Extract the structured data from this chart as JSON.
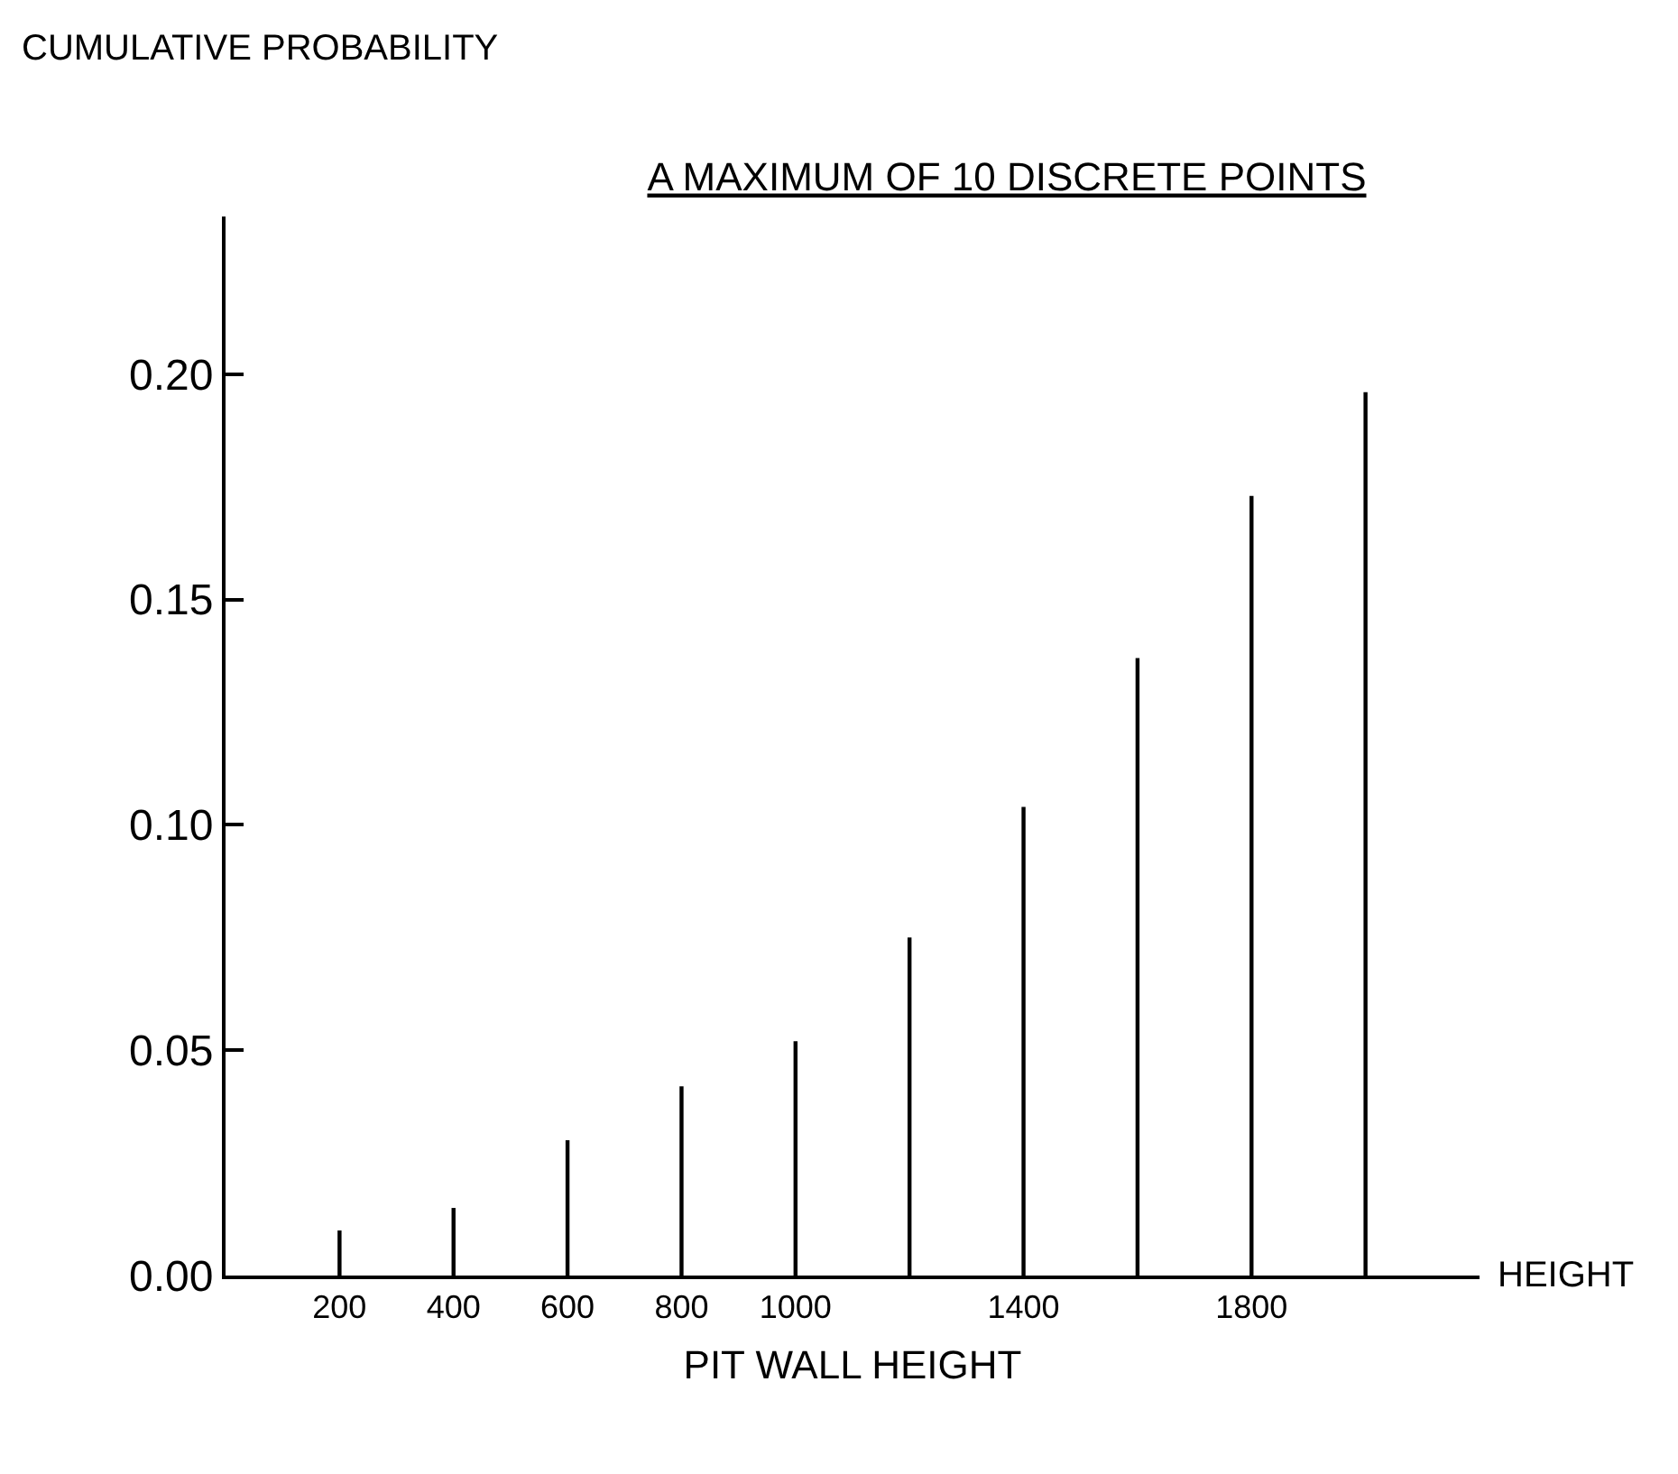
{
  "chart_data": {
    "type": "bar",
    "title": "A MAXIMUM OF 10 DISCRETE POINTS",
    "xlabel": "PIT WALL HEIGHT",
    "ylabel": "CUMULATIVE PROBABILITY",
    "annotations": [
      "HEIGHT"
    ],
    "categories": [
      "200",
      "400",
      "600",
      "800",
      "1000",
      null,
      "1400",
      null,
      "1800",
      null
    ],
    "values": [
      0.01,
      0.015,
      0.03,
      0.042,
      0.052,
      0.075,
      0.104,
      0.137,
      0.173,
      0.196
    ],
    "color": "#000000",
    "ylim": [
      0,
      0.235
    ],
    "yticks": [
      {
        "value": 0,
        "label": "0.00"
      },
      {
        "value": 0.05,
        "label": "0.05"
      },
      {
        "value": 0.1,
        "label": "0.10"
      },
      {
        "value": 0.15,
        "label": "0.15"
      },
      {
        "value": 0.2,
        "label": "0.20"
      }
    ],
    "legend": false
  }
}
